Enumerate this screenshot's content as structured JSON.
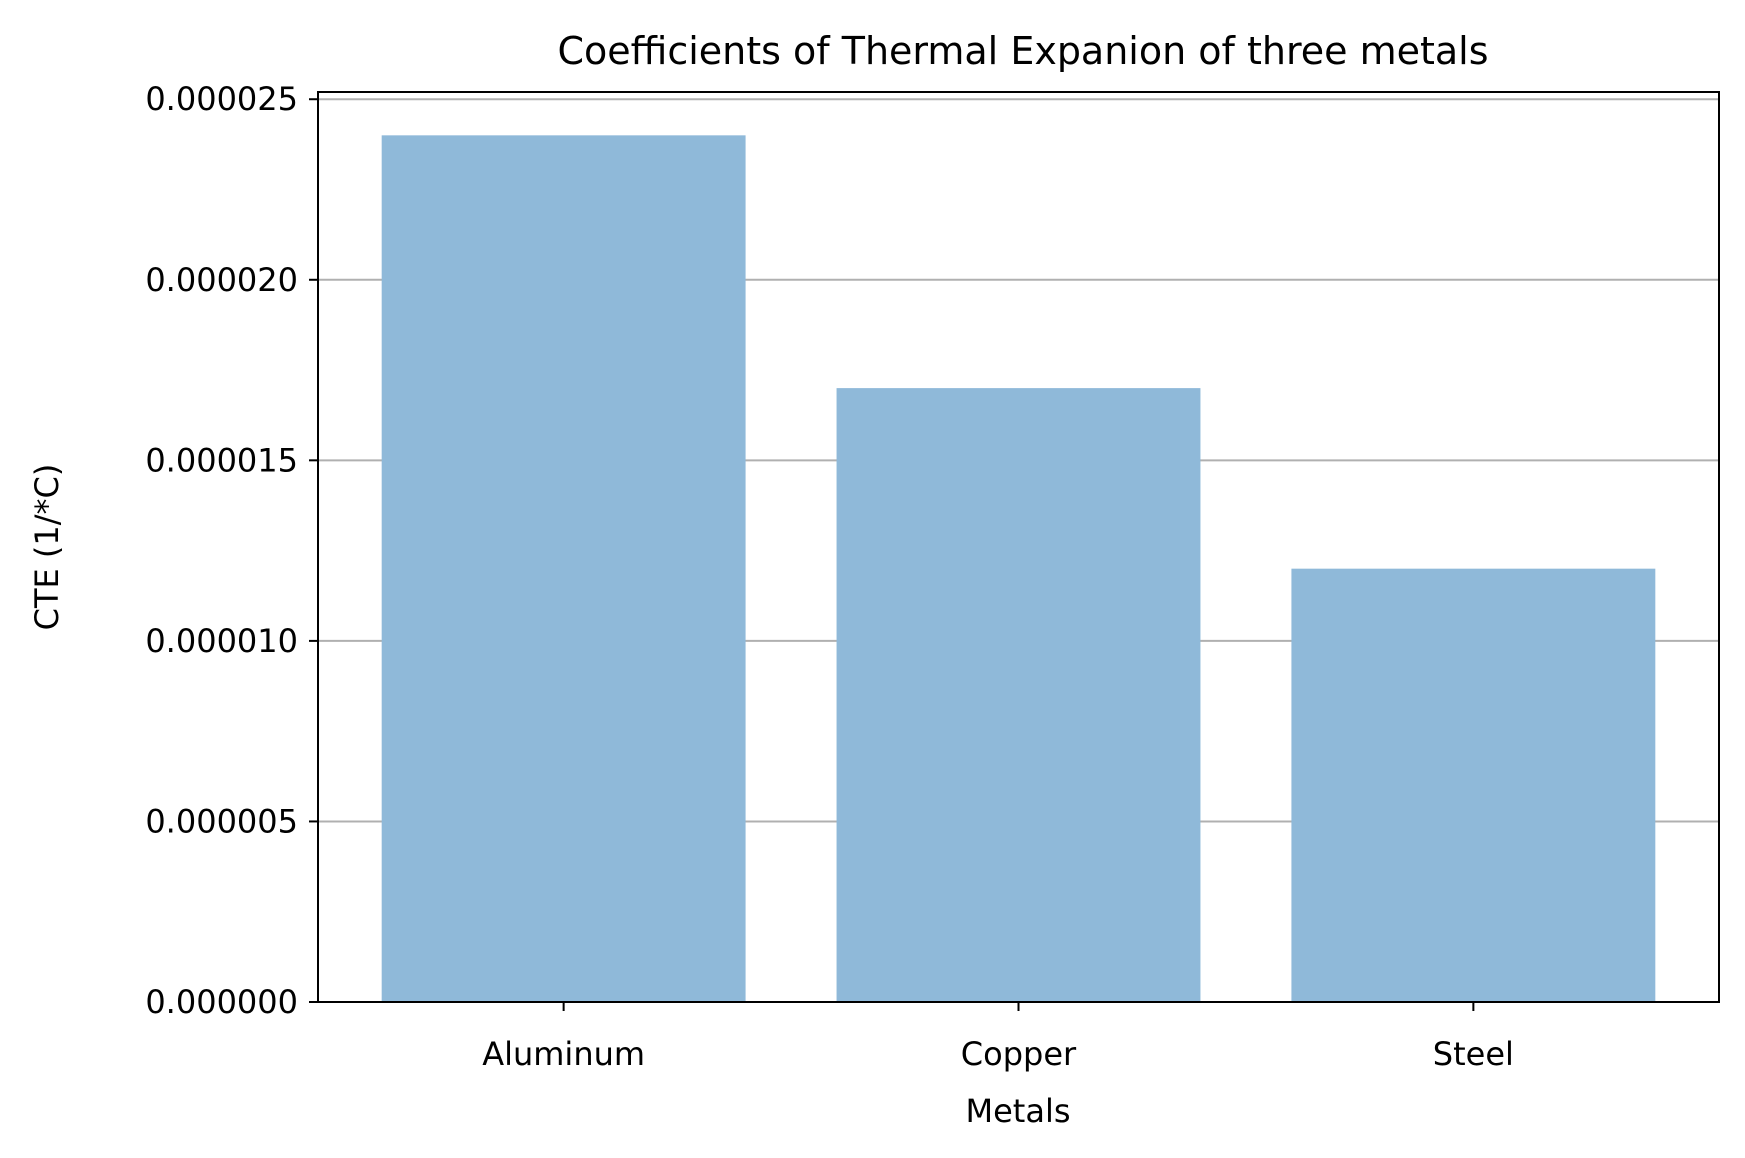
{
  "chart_data": {
    "type": "bar",
    "title": "Coefficients of Thermal Expanion of three metals",
    "xlabel": "Metals",
    "ylabel": "CTE (1/*C)",
    "categories": [
      "Aluminum",
      "Copper",
      "Steel"
    ],
    "values": [
      2.4e-05,
      1.7e-05,
      1.2e-05
    ],
    "ylim": [
      0,
      2.52e-05
    ],
    "yticks": [
      0,
      5e-06,
      1e-05,
      1.5e-05,
      2e-05,
      2.5e-05
    ],
    "ytick_labels": [
      "0.000000",
      "0.000005",
      "0.000010",
      "0.000015",
      "0.000020",
      "0.000025"
    ],
    "grid": "y-axis only",
    "legend": "none",
    "bar_color": "#8fb9d9",
    "grid_color": "#b0b0b0"
  }
}
